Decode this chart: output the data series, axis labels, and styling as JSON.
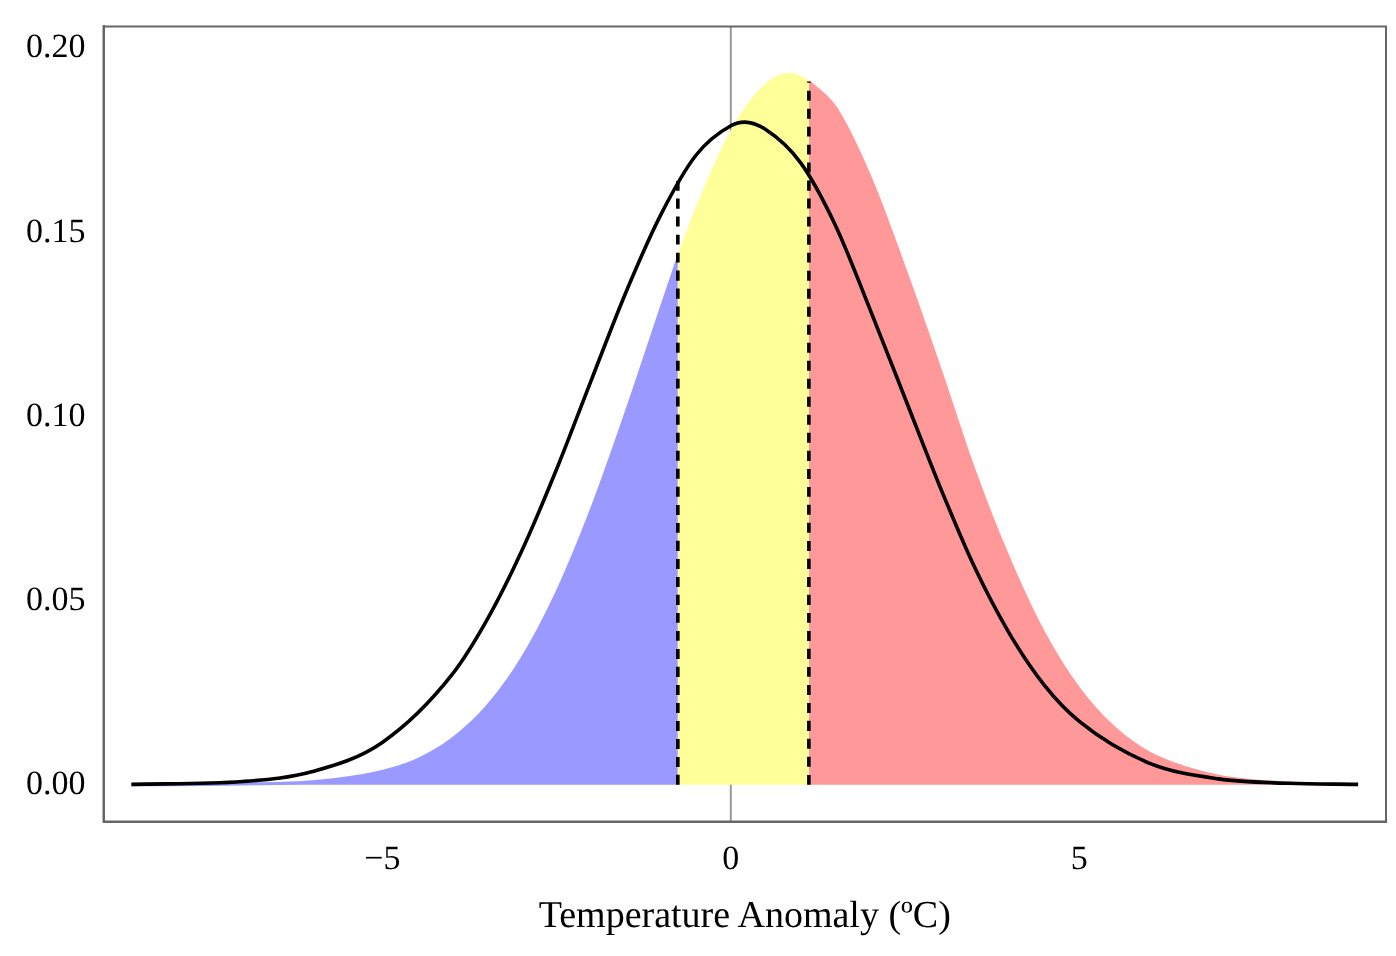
{
  "chart_data": {
    "type": "area",
    "xlabel": "Temperature Anomaly (ºC)",
    "xlim": [
      -9.0,
      9.4
    ],
    "ylim": [
      -0.01,
      0.206
    ],
    "xticks": [
      {
        "value": -5,
        "label": "−5"
      },
      0,
      5
    ],
    "yticks": [
      {
        "value": 0,
        "label": "0.00"
      },
      {
        "value": 0.05,
        "label": "0.05"
      },
      {
        "value": 0.1,
        "label": "0.10"
      },
      {
        "value": 0.15,
        "label": "0.15"
      },
      {
        "value": 0.2,
        "label": "0.20"
      }
    ],
    "grid": false,
    "legend": false,
    "marker": "none",
    "ref_lines": [
      {
        "axis": "x",
        "value": 0,
        "color": "#999999"
      }
    ],
    "series": [
      {
        "color": "#9999ff",
        "x": [
          -8.6,
          -8,
          -7,
          -6,
          -5,
          -4.5,
          -4,
          -3.5,
          -3,
          -2.5,
          -2,
          -1.5,
          -1,
          -0.76
        ],
        "values": [
          0,
          0,
          0.0002,
          0.0008,
          0.0036,
          0.0068,
          0.0124,
          0.0212,
          0.0342,
          0.0521,
          0.0748,
          0.1013,
          0.1295,
          0.143
        ]
      },
      {
        "color": "#ffff99",
        "x": [
          -0.76,
          -0.5,
          0,
          0.5,
          0.85,
          1.12
        ],
        "values": [
          0.143,
          0.156,
          0.177,
          0.19,
          0.193,
          0.191
        ]
      },
      {
        "color": "#ff9999",
        "x": [
          1.12,
          1.5,
          2,
          2.5,
          3,
          3.5,
          4,
          4.5,
          5,
          5.5,
          6,
          7,
          8,
          9
        ],
        "values": [
          0.191,
          0.184,
          0.165,
          0.14,
          0.113,
          0.085,
          0.061,
          0.041,
          0.026,
          0.0155,
          0.0087,
          0.0023,
          0.0005,
          0
        ]
      },
      {
        "type": "line",
        "color": "#000000",
        "x": [
          -8.6,
          -7,
          -6,
          -5,
          -4,
          -3.5,
          -3,
          -2.5,
          -2,
          -1.5,
          -1,
          -0.5,
          0,
          0.2,
          0.5,
          1,
          1.5,
          2,
          2.5,
          3,
          3.5,
          4,
          4.5,
          5,
          6,
          7,
          8,
          9
        ],
        "values": [
          0.0001,
          0.0009,
          0.0036,
          0.0115,
          0.0299,
          0.0447,
          0.0635,
          0.0857,
          0.11,
          0.134,
          0.155,
          0.171,
          0.179,
          0.18,
          0.178,
          0.169,
          0.152,
          0.129,
          0.105,
          0.081,
          0.059,
          0.041,
          0.027,
          0.0172,
          0.0059,
          0.0016,
          0.0004,
          0.0001
        ]
      },
      {
        "type": "line",
        "color": "#000000",
        "line_style": "dashed",
        "x": [
          -0.76,
          -0.76
        ],
        "values": [
          0,
          0.164
        ]
      },
      {
        "type": "line",
        "color": "#000000",
        "line_style": "dashed",
        "x": [
          1.12,
          1.12
        ],
        "values": [
          0,
          0.191
        ]
      }
    ]
  }
}
